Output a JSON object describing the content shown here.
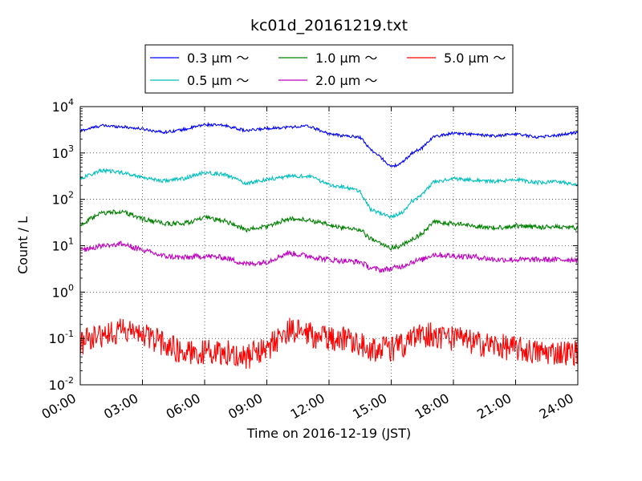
{
  "chart_data": {
    "type": "line",
    "title": "kc01d_20161219.txt",
    "xlabel": "Time on 2016-12-19 (JST)",
    "ylabel": "Count / L",
    "y_scale": "log",
    "ylim": [
      0.01,
      10000
    ],
    "xlim": [
      "00:00",
      "24:00"
    ],
    "x_tick_labels": [
      "00:00",
      "03:00",
      "06:00",
      "09:00",
      "12:00",
      "15:00",
      "18:00",
      "21:00",
      "24:00"
    ],
    "y_tick_labels": [
      {
        "base": "10",
        "exp": "-2"
      },
      {
        "base": "10",
        "exp": "-1"
      },
      {
        "base": "10",
        "exp": "0"
      },
      {
        "base": "10",
        "exp": "1"
      },
      {
        "base": "10",
        "exp": "2"
      },
      {
        "base": "10",
        "exp": "3"
      },
      {
        "base": "10",
        "exp": "4"
      }
    ],
    "grid": true,
    "legend_position": "top-center, above plot",
    "x": [
      "00:00",
      "01:00",
      "02:00",
      "03:00",
      "04:00",
      "05:00",
      "06:00",
      "07:00",
      "08:00",
      "09:00",
      "10:00",
      "11:00",
      "12:00",
      "12:30",
      "13:00",
      "13:30",
      "14:00",
      "14:30",
      "15:00",
      "15:30",
      "16:00",
      "16:30",
      "17:00",
      "18:00",
      "19:00",
      "20:00",
      "21:00",
      "22:00",
      "23:00",
      "24:00"
    ],
    "series": [
      {
        "name": "0.3 μm ～",
        "color": "#0000ff",
        "noise": 0.03,
        "values": [
          3000,
          3900,
          3700,
          3300,
          2800,
          3200,
          4100,
          3900,
          3000,
          3400,
          3600,
          3800,
          2600,
          2400,
          2300,
          2200,
          1200,
          800,
          500,
          600,
          1000,
          1300,
          2200,
          2700,
          2500,
          2300,
          2600,
          2200,
          2400,
          2800
        ]
      },
      {
        "name": "0.5 μm ～",
        "color": "#00bfbf",
        "noise": 0.04,
        "values": [
          280,
          420,
          380,
          300,
          250,
          280,
          380,
          340,
          220,
          270,
          310,
          320,
          210,
          190,
          170,
          150,
          60,
          50,
          42,
          50,
          90,
          130,
          230,
          280,
          260,
          240,
          270,
          230,
          240,
          210
        ]
      },
      {
        "name": "1.0 μm ～",
        "color": "#008000",
        "noise": 0.05,
        "values": [
          28,
          50,
          55,
          38,
          30,
          30,
          40,
          34,
          22,
          26,
          38,
          36,
          28,
          25,
          24,
          22,
          14,
          11,
          9,
          10,
          14,
          18,
          32,
          30,
          27,
          24,
          27,
          25,
          26,
          24
        ]
      },
      {
        "name": "2.0 μm ～",
        "color": "#bf00bf",
        "noise": 0.06,
        "values": [
          8,
          10,
          11,
          8,
          6,
          5.5,
          6,
          5.5,
          4,
          4.5,
          7,
          6,
          5,
          4.8,
          4.6,
          4.5,
          3.3,
          3,
          3.2,
          3.6,
          4.5,
          5,
          6.5,
          6,
          5.8,
          5,
          5,
          5,
          5,
          5
        ]
      },
      {
        "name": "5.0 μm ～",
        "color": "#ff0000",
        "noise": 0.28,
        "values": [
          0.08,
          0.12,
          0.15,
          0.12,
          0.08,
          0.05,
          0.05,
          0.05,
          0.04,
          0.06,
          0.15,
          0.12,
          0.1,
          0.1,
          0.1,
          0.08,
          0.06,
          0.06,
          0.06,
          0.07,
          0.1,
          0.12,
          0.12,
          0.1,
          0.08,
          0.07,
          0.06,
          0.05,
          0.05,
          0.05
        ]
      }
    ]
  }
}
